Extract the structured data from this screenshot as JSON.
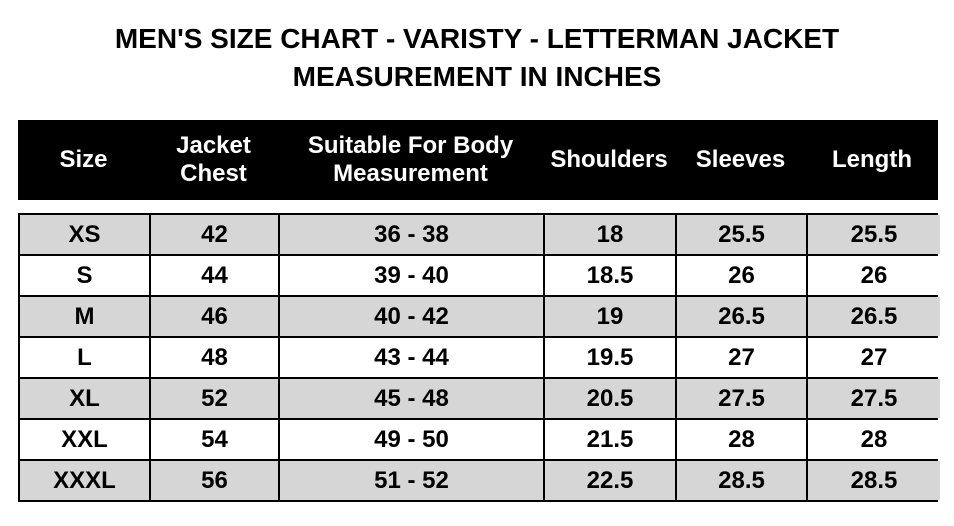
{
  "title": {
    "line1": "MEN'S SIZE CHART - VARISTY - LETTERMAN JACKET",
    "line2": "MEASUREMENT IN INCHES"
  },
  "table": {
    "columns": [
      "Size",
      "Jacket Chest",
      "Suitable For Body Measurement",
      "Shoulders",
      "Sleeves",
      "Length"
    ],
    "rows": [
      [
        "XS",
        "42",
        "36 - 38",
        "18",
        "25.5",
        "25.5"
      ],
      [
        "S",
        "44",
        "39 - 40",
        "18.5",
        "26",
        "26"
      ],
      [
        "M",
        "46",
        "40 - 42",
        "19",
        "26.5",
        "26.5"
      ],
      [
        "L",
        "48",
        "43 - 44",
        "19.5",
        "27",
        "27"
      ],
      [
        "XL",
        "52",
        "45 - 48",
        "20.5",
        "27.5",
        "27.5"
      ],
      [
        "XXL",
        "54",
        "49 - 50",
        "21.5",
        "28",
        "28"
      ],
      [
        "XXXL",
        "56",
        "51 - 52",
        "22.5",
        "28.5",
        "28.5"
      ]
    ],
    "units": "inches"
  },
  "colors": {
    "header_bg": "#000000",
    "header_text": "#ffffff",
    "row_alt_bg": "#d6d6d6",
    "row_bg": "#ffffff",
    "border": "#000000",
    "text": "#000000"
  }
}
